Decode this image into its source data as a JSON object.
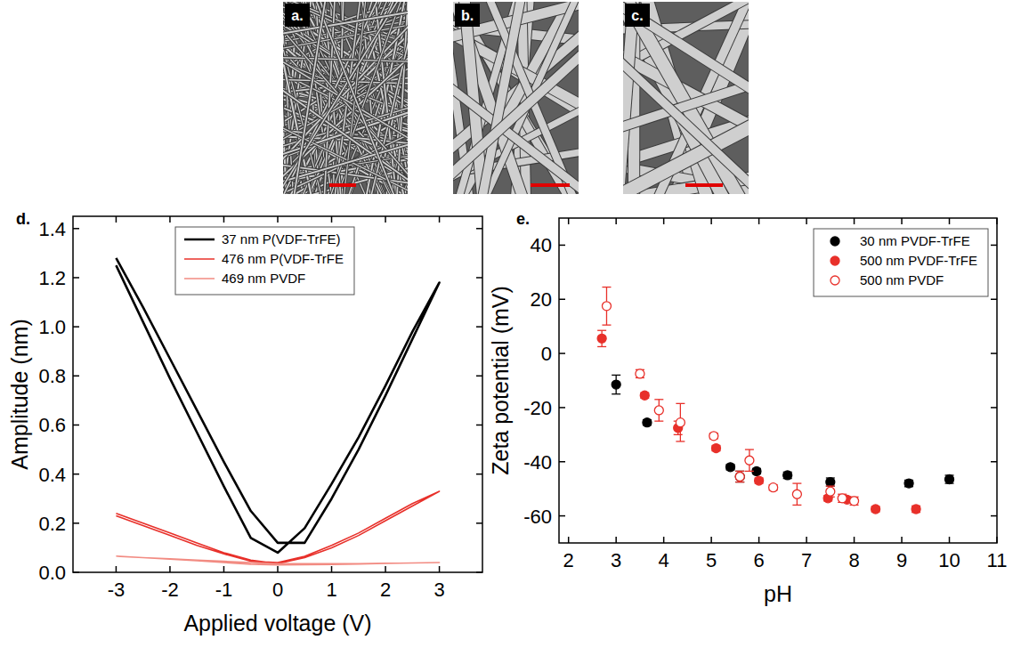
{
  "images": [
    {
      "label": "a."
    },
    {
      "label": "b."
    },
    {
      "label": "c."
    }
  ],
  "chart_data": [
    {
      "type": "line",
      "panel": "d.",
      "x_label": "Applied voltage (V)",
      "y_label": "Amplitude (nm)",
      "x": [
        -3,
        -2.5,
        -2,
        -1.5,
        -1,
        -0.5,
        0,
        0.5,
        1,
        1.5,
        2,
        2.5,
        3,
        2.5,
        2,
        1.5,
        1,
        0.5,
        0,
        -0.5,
        -1,
        -1.5,
        -2,
        -2.5,
        -3
      ],
      "series": [
        {
          "name": "37 nm P(VDF-TrFE)",
          "color": "#000000",
          "line_style": "solid",
          "values": [
            1.28,
            1.08,
            0.87,
            0.66,
            0.45,
            0.25,
            0.12,
            0.12,
            0.3,
            0.5,
            0.72,
            0.95,
            1.18,
            0.98,
            0.76,
            0.55,
            0.36,
            0.18,
            0.08,
            0.14,
            0.35,
            0.57,
            0.79,
            1.02,
            1.25
          ]
        },
        {
          "name": "476 nm P(VDF-TrFE",
          "color": "#e8302a",
          "line_style": "solid",
          "values": [
            0.24,
            0.2,
            0.16,
            0.12,
            0.08,
            0.05,
            0.035,
            0.06,
            0.1,
            0.15,
            0.21,
            0.27,
            0.33,
            0.28,
            0.22,
            0.16,
            0.11,
            0.065,
            0.04,
            0.045,
            0.075,
            0.11,
            0.15,
            0.19,
            0.23
          ]
        },
        {
          "name": "469 nm PVDF",
          "color": "#f28b82",
          "line_style": "solid",
          "values": [
            0.065,
            0.06,
            0.055,
            0.05,
            0.045,
            0.04,
            0.035,
            0.035,
            0.035,
            0.035,
            0.037,
            0.038,
            0.04,
            0.038,
            0.036,
            0.034,
            0.032,
            0.031,
            0.03,
            0.033,
            0.04,
            0.047,
            0.054,
            0.06,
            0.066
          ]
        }
      ],
      "xlim": [
        -3.8,
        3.8
      ],
      "xticks": [
        -3,
        -2,
        -1,
        0,
        1,
        2,
        3
      ],
      "ylim": [
        0,
        1.45
      ],
      "yticks": [
        {
          "value": 0,
          "label": "0.0"
        },
        0.2,
        0.4,
        0.6,
        0.8,
        {
          "value": 1,
          "label": "1.0"
        },
        1.2,
        1.4
      ],
      "legend": "top",
      "grid": false
    },
    {
      "type": "scatter",
      "panel": "e.",
      "x_label": "pH",
      "y_label": "Zeta potential (mV)",
      "series": [
        {
          "name": "30 nm PVDF-TrFE",
          "color": "#000000",
          "marker": "circle",
          "x": [
            3.0,
            3.65,
            5.4,
            5.6,
            5.95,
            6.6,
            7.5,
            9.15,
            10.0
          ],
          "values": [
            -11.5,
            -25.5,
            -42,
            -45.5,
            -43.5,
            -45,
            -47.5,
            -48,
            -46.5
          ],
          "errors": [
            3.5,
            1,
            1,
            2,
            1,
            1.2,
            1.5,
            1.2,
            1.5
          ]
        },
        {
          "name": "500 nm PVDF-TrFE",
          "color": "#e8302a",
          "marker": "circle",
          "x": [
            2.7,
            3.6,
            4.3,
            5.1,
            6.0,
            7.45,
            7.85,
            8.45,
            9.3
          ],
          "values": [
            5.5,
            -15.5,
            -27.5,
            -35,
            -47,
            -53.5,
            -54,
            -57.5,
            -57.5
          ],
          "errors": [
            3,
            1,
            2.5,
            1,
            1,
            1,
            1,
            1,
            1.2
          ]
        },
        {
          "name": "500 nm PVDF",
          "color": "#e8302a",
          "marker": "open_circle",
          "x": [
            2.8,
            3.5,
            3.9,
            4.35,
            5.05,
            5.6,
            5.8,
            6.3,
            6.8,
            7.5,
            7.75,
            8.0
          ],
          "values": [
            17.5,
            -7.5,
            -21,
            -25.5,
            -30.5,
            -45.5,
            -39.5,
            -49.5,
            -52,
            -51,
            -53.5,
            -54.5
          ],
          "errors": [
            7,
            1.5,
            4,
            7,
            1,
            2,
            4,
            1,
            4,
            2,
            1.5,
            1.5
          ]
        }
      ],
      "xlim": [
        1.8,
        11
      ],
      "xticks": [
        2,
        3,
        4,
        5,
        6,
        7,
        8,
        9,
        10,
        11
      ],
      "ylim": [
        -70,
        50
      ],
      "yticks": [
        -60,
        -40,
        -20,
        0,
        20,
        40
      ],
      "legend": "top-right",
      "grid": false
    }
  ]
}
